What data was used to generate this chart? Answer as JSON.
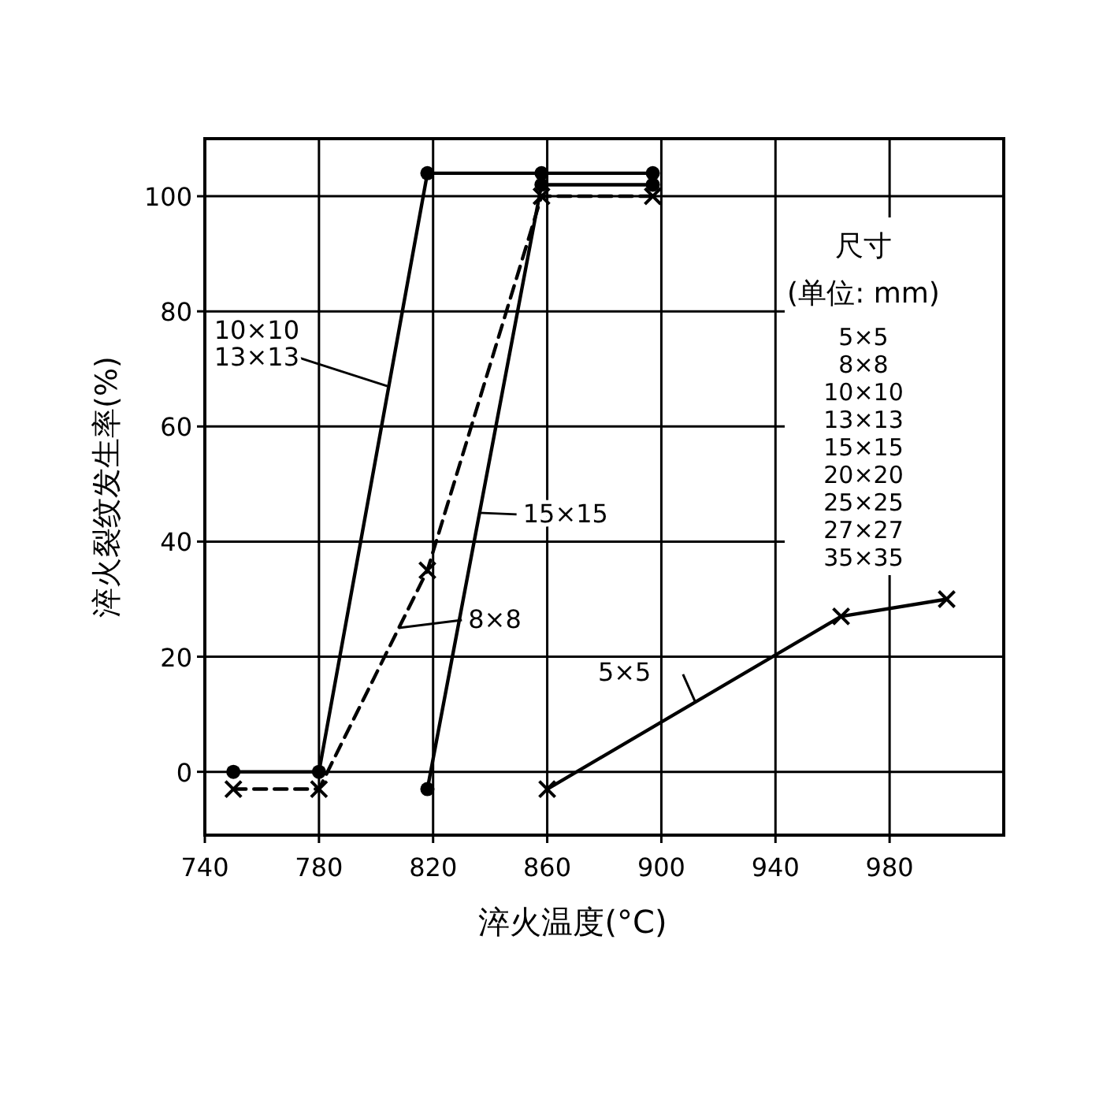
{
  "chart_data": {
    "type": "line",
    "xlabel": "淬火温度(°C)",
    "ylabel": "淬火裂纹发生率(%)",
    "xlim": [
      740,
      1020
    ],
    "ylim": [
      -11,
      110
    ],
    "xticks": [
      740,
      780,
      820,
      860,
      900,
      940,
      980
    ],
    "yticks": [
      0,
      20,
      40,
      60,
      80,
      100
    ],
    "grid": true,
    "series": [
      {
        "color": "#000000",
        "marker": "circle",
        "line_style": "solid",
        "x": [
          750,
          780,
          818,
          858,
          897
        ],
        "values": [
          0,
          0,
          104,
          104,
          104
        ]
      },
      {
        "color": "#000000",
        "marker": "circle",
        "line_style": "solid",
        "x": [
          818,
          858,
          897
        ],
        "values": [
          -3,
          102,
          102
        ]
      },
      {
        "color": "#000000",
        "marker": "cross",
        "line_style": "dashed",
        "x": [
          750,
          780,
          818,
          858,
          897
        ],
        "values": [
          -3,
          -3,
          35,
          100,
          100
        ]
      },
      {
        "color": "#000000",
        "marker": "cross",
        "line_style": "solid",
        "x": [
          860,
          963,
          1000
        ],
        "values": [
          -3,
          27,
          30
        ]
      }
    ],
    "annotations": [
      {
        "text": "10×10\n13×13",
        "x": 804,
        "y": 67
      },
      {
        "text": "15×15",
        "x": 836,
        "y": 45
      },
      {
        "text": "8×8",
        "x": 808,
        "y": 25
      },
      {
        "text": "5×5",
        "x": 912,
        "y": 12
      },
      "尺寸",
      "(单位: mm)",
      "5×5",
      "8×8",
      "10×10",
      "13×13",
      "15×15",
      "20×20",
      "25×25",
      "27×27",
      "35×35"
    ]
  }
}
